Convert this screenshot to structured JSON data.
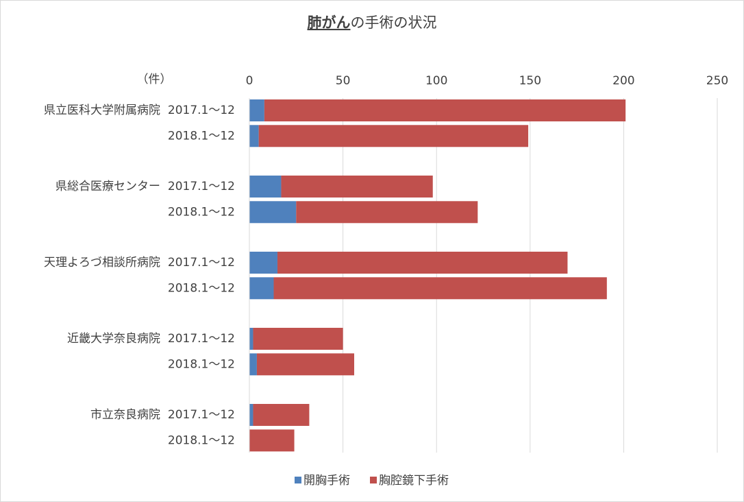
{
  "chart_data": {
    "type": "stacked-bar-horizontal",
    "title": [
      "肺がん",
      "の手術の状況"
    ],
    "x_axis_label": "（件）",
    "category_groups": [
      "県立医科大学附属病院",
      "県総合医療センター",
      "天理よろづ相談所病院",
      "近畿大学奈良病院",
      "市立奈良病院"
    ],
    "categories": [
      "2017.1～12",
      "2018.1～12",
      "2017.1～12",
      "2018.1～12",
      "2017.1～12",
      "2018.1～12",
      "2017.1～12",
      "2018.1～12",
      "2017.1～12",
      "2018.1～12"
    ],
    "series": [
      {
        "name": "開胸手術",
        "color": "#4f81bd",
        "values": [
          8,
          5,
          17,
          25,
          15,
          13,
          2,
          4,
          2,
          0
        ]
      },
      {
        "name": "胸腔鏡下手術",
        "color": "#c0504d",
        "values": [
          193,
          144,
          81,
          97,
          155,
          178,
          48,
          52,
          30,
          24
        ]
      }
    ],
    "xlim": [
      0,
      250
    ],
    "xticks": [
      0,
      50,
      100,
      150,
      200,
      250
    ],
    "grid": true,
    "legend": "bottom"
  }
}
